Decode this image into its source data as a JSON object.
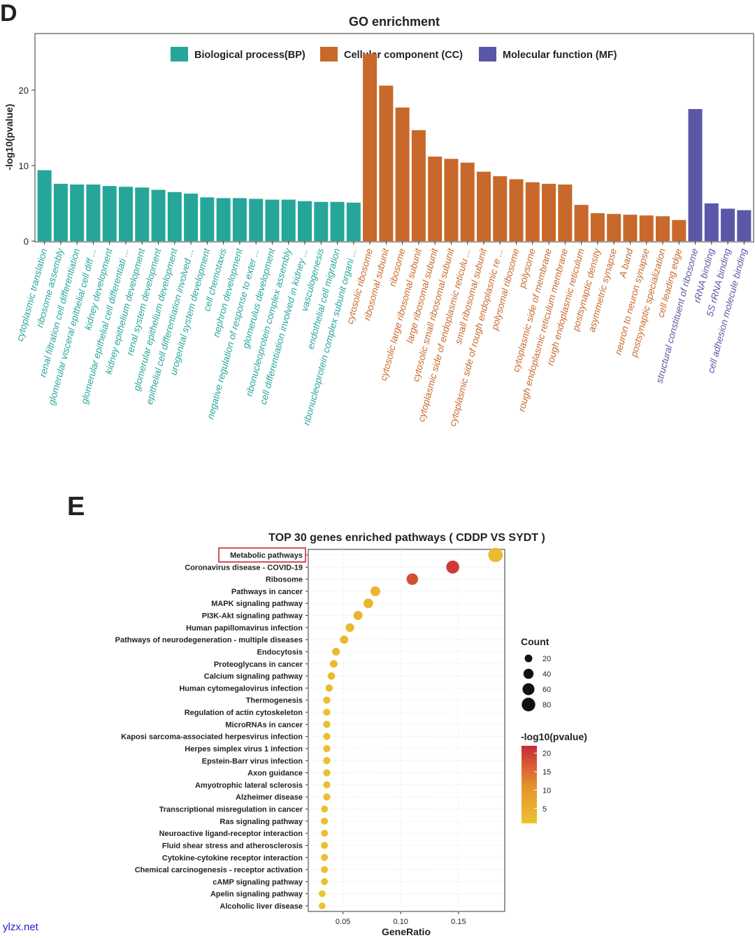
{
  "panels": {
    "d": "D",
    "e": "E"
  },
  "watermark": "ylzx.net",
  "chart_data": [
    {
      "type": "bar",
      "title": "GO enrichment",
      "ylabel": "-log10(pvalue)",
      "xlabel": "",
      "ylim": [
        0,
        27.5
      ],
      "yticks": [
        0,
        10,
        20
      ],
      "series": [
        {
          "name": "Biological process(BP)",
          "color": "#26A69A",
          "categories": [
            "cytoplasmic translation",
            "ribosome assembly",
            "renal filtration cell differentiation",
            "glomerular visceral epithelial cell diff ...",
            "kidney development",
            "glomerular epithelial cell differentiati ...",
            "kidney epithelium development",
            "renal system development",
            "glomerular epithelium development",
            "epithelial cell differentiation involved ...",
            "urogenital system development",
            "cell chemotaxis",
            "nephron development",
            "negative regulation of response to exter ...",
            "glomerulus development",
            "ribonucleoprotein complex assembly",
            "cell differentiation involved in kidney ...",
            "vasculogenesis",
            "endothelial cell migration",
            "ribonucleoprotein complex subunit organi ..."
          ],
          "values": [
            9.4,
            7.6,
            7.5,
            7.5,
            7.3,
            7.2,
            7.1,
            6.8,
            6.5,
            6.3,
            5.8,
            5.7,
            5.7,
            5.6,
            5.5,
            5.5,
            5.3,
            5.2,
            5.2,
            5.1
          ]
        },
        {
          "name": "Cellular component (CC)",
          "color": "#C8682A",
          "categories": [
            "cytosolic ribosome",
            "ribosomal subunit",
            "ribosome",
            "cytosolic large ribosomal subunit",
            "large ribosomal subunit",
            "cytosolic small ribosomal subunit",
            "cytoplasmic side of endoplasmic reticulu ...",
            "small ribosomal subunit",
            "cytoplasmic side of rough endoplasmic re ...",
            "polysomal ribosome",
            "polysome",
            "cytoplasmic side of membrane",
            "rough endoplasmic reticulum membrane",
            "rough endoplasmic reticulum",
            "postsynaptic density",
            "asymmetric synapse",
            "A band",
            "neuron to neuron synapse",
            "postsynaptic specialization",
            "cell leading edge"
          ],
          "values": [
            24.8,
            20.6,
            17.7,
            14.7,
            11.2,
            10.9,
            10.4,
            9.2,
            8.6,
            8.2,
            7.8,
            7.6,
            7.5,
            4.8,
            3.7,
            3.6,
            3.5,
            3.4,
            3.3,
            2.8
          ]
        },
        {
          "name": "Molecular function (MF)",
          "color": "#5B57A8",
          "categories": [
            "structural constituent of ribosome",
            "rRNA binding",
            "5S rRNA binding",
            "cell adhesion molecule binding"
          ],
          "values": [
            17.5,
            5.0,
            4.3,
            4.1
          ]
        }
      ]
    },
    {
      "type": "scatter",
      "title": "TOP 30 genes enriched pathways ( CDDP VS SYDT )",
      "xlabel": "GeneRatio",
      "xlim": [
        0.02,
        0.19
      ],
      "xticks": [
        0.05,
        0.1,
        0.15
      ],
      "highlighted": "Metabolic pathways",
      "pathways": [
        "Metabolic pathways",
        "Coronavirus disease - COVID-19",
        "Ribosome",
        "Pathways in cancer",
        "MAPK signaling pathway",
        "PI3K-Akt signaling pathway",
        "Human papillomavirus infection",
        "Pathways of neurodegeneration - multiple diseases",
        "Endocytosis",
        "Proteoglycans in cancer",
        "Calcium signaling pathway",
        "Human cytomegalovirus infection",
        "Thermogenesis",
        "Regulation of actin cytoskeleton",
        "MicroRNAs in cancer",
        "Kaposi sarcoma-associated herpesvirus infection",
        "Herpes simplex virus 1 infection",
        "Epstein-Barr virus infection",
        "Axon guidance",
        "Amyotrophic lateral sclerosis",
        "Alzheimer disease",
        "Transcriptional misregulation in cancer",
        "Ras signaling pathway",
        "Neuroactive ligand-receptor interaction",
        "Fluid shear stress and atherosclerosis",
        "Cytokine-cytokine receptor interaction",
        "Chemical carcinogenesis - receptor activation",
        "cAMP signaling pathway",
        "Apelin signaling pathway",
        "Alcoholic liver disease"
      ],
      "gene_ratio": [
        0.182,
        0.145,
        0.11,
        0.078,
        0.072,
        0.063,
        0.056,
        0.051,
        0.044,
        0.042,
        0.04,
        0.038,
        0.036,
        0.036,
        0.036,
        0.036,
        0.036,
        0.036,
        0.036,
        0.036,
        0.036,
        0.034,
        0.034,
        0.034,
        0.034,
        0.034,
        0.034,
        0.034,
        0.032,
        0.032
      ],
      "neg_log10_p": [
        3,
        20,
        18,
        4,
        4,
        4,
        3,
        3,
        3,
        3,
        3,
        3,
        2,
        2,
        2,
        2,
        2,
        2,
        2,
        2,
        2,
        2,
        2,
        2,
        2,
        2,
        2,
        2,
        1,
        1
      ],
      "count": [
        92,
        72,
        55,
        38,
        35,
        31,
        27,
        25,
        21,
        20,
        19,
        18,
        17,
        17,
        17,
        17,
        17,
        17,
        17,
        17,
        17,
        16,
        16,
        16,
        16,
        16,
        16,
        16,
        15,
        15
      ],
      "legend_count": {
        "title": "Count",
        "values": [
          20,
          40,
          60,
          80
        ]
      },
      "legend_color": {
        "title": "-log10(pvalue)",
        "values": [
          5,
          10,
          15,
          20
        ],
        "low_color": "#EBC430",
        "high_color": "#C8283C"
      }
    }
  ]
}
